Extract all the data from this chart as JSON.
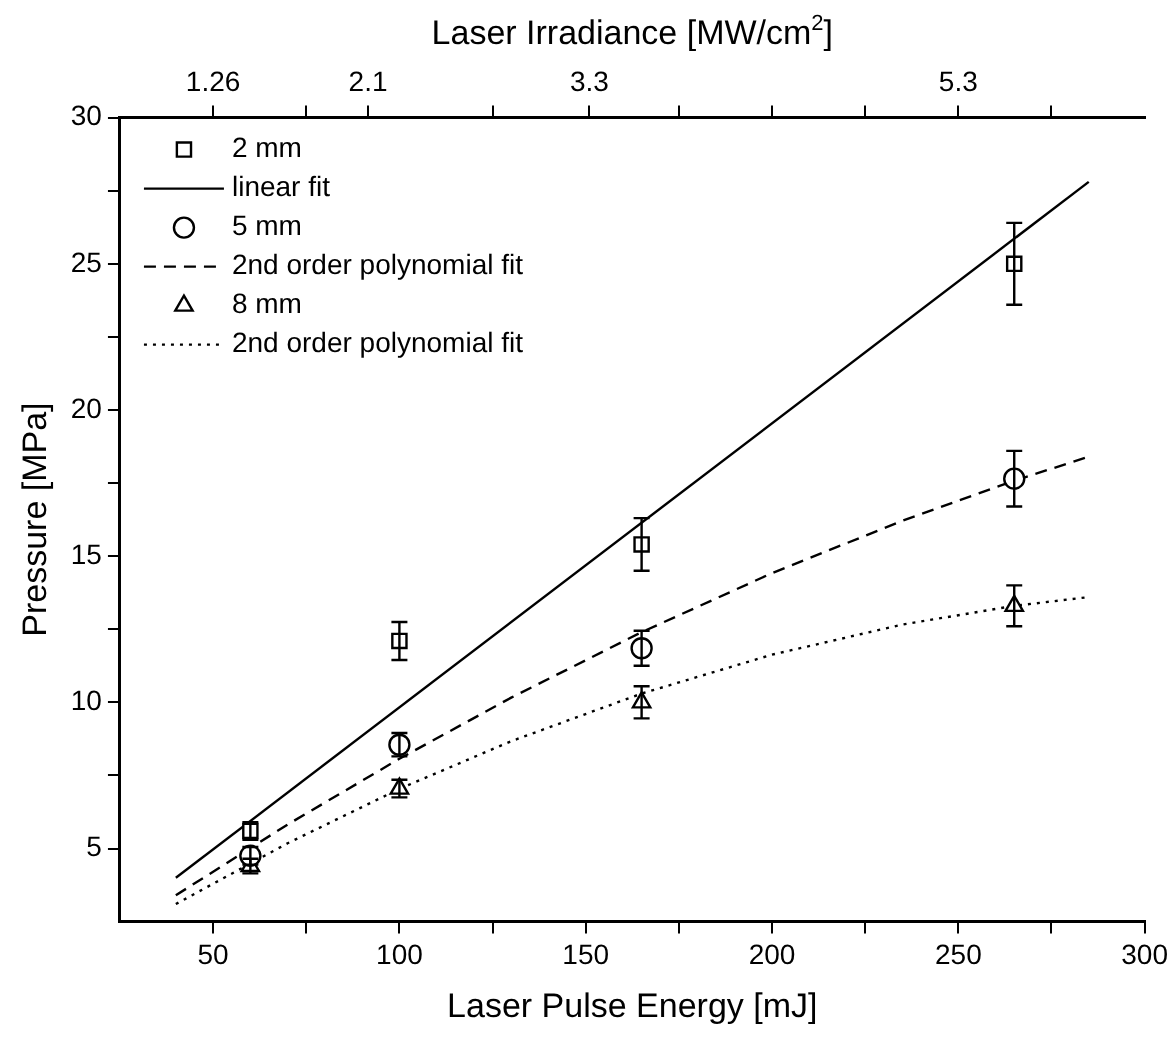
{
  "chart_data": {
    "type": "scatter",
    "xlabel": "Laser Pulse Energy [mJ]",
    "ylabel": "Pressure [MPa]",
    "x2label": "Laser Irradiance [MW/cm$^{2}$]",
    "xlim": [
      25,
      300
    ],
    "xticks": [
      50,
      {
        "value": 75,
        "label": null
      },
      100,
      {
        "value": 125,
        "label": null
      },
      150,
      {
        "value": 175,
        "label": null
      },
      200,
      {
        "value": 225,
        "label": null
      },
      250,
      {
        "value": 275,
        "label": null
      },
      300
    ],
    "x2lim": [
      0.755,
      6.31
    ],
    "x2ticks": [
      1.26,
      {
        "value": 1.765,
        "label": null
      },
      2.1,
      {
        "value": 2.775,
        "label": null
      },
      3.3,
      {
        "value": 3.785,
        "label": null
      },
      {
        "value": 4.29,
        "label": null
      },
      {
        "value": 4.795,
        "label": null
      },
      5.3,
      {
        "value": 5.805,
        "label": null
      }
    ],
    "ylim": [
      2.5,
      30
    ],
    "yticks": [
      5,
      {
        "value": 7.5,
        "label": null
      },
      10,
      {
        "value": 12.5,
        "label": null
      },
      15,
      {
        "value": 17.5,
        "label": null
      },
      20,
      {
        "value": 22.5,
        "label": null
      },
      25,
      {
        "value": 27.5,
        "label": null
      },
      30
    ],
    "legend": "top left",
    "series": [
      {
        "name": "2 mm",
        "marker": "square",
        "color": "#000000",
        "x": [
          60,
          100,
          165,
          265
        ],
        "values": [
          5.6,
          12.1,
          15.4,
          25.0
        ],
        "errors": [
          0.3,
          0.65,
          0.9,
          1.4
        ]
      },
      {
        "name": "linear fit",
        "type": "line",
        "marker": "none",
        "line_style": "solid",
        "color": "#000000",
        "x": [
          40,
          285
        ],
        "values": [
          4.0,
          27.8
        ]
      },
      {
        "name": "5 mm",
        "marker": "circle",
        "color": "#000000",
        "x": [
          60,
          100,
          165,
          265
        ],
        "values": [
          4.75,
          8.55,
          11.85,
          17.65
        ],
        "errors": [
          0.3,
          0.4,
          0.6,
          0.95
        ]
      },
      {
        "name": "2nd order polynomial fit",
        "type": "line",
        "marker": "none",
        "line_style": "dashed",
        "color": "#000000",
        "x": [
          40,
          70,
          100,
          130,
          165,
          200,
          235,
          265,
          285
        ],
        "values": [
          3.4,
          5.82,
          8.07,
          10.16,
          12.4,
          14.42,
          16.21,
          17.58,
          18.4
        ]
      },
      {
        "name": "8 mm",
        "marker": "triangle",
        "color": "#000000",
        "x": [
          60,
          100,
          165,
          265
        ],
        "values": [
          4.4,
          7.05,
          10.0,
          13.3
        ],
        "errors": [
          0.25,
          0.3,
          0.55,
          0.7
        ]
      },
      {
        "name": "2nd order polynomial fit",
        "type": "line",
        "marker": "none",
        "line_style": "dotted",
        "color": "#000000",
        "x": [
          40,
          70,
          100,
          130,
          165,
          200,
          235,
          265,
          285
        ],
        "values": [
          3.1,
          5.18,
          7.04,
          8.67,
          10.3,
          11.63,
          12.66,
          13.3,
          13.6
        ]
      }
    ]
  }
}
